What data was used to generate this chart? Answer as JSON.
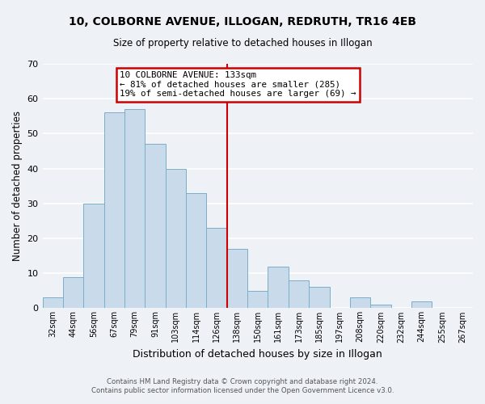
{
  "title_line1": "10, COLBORNE AVENUE, ILLOGAN, REDRUTH, TR16 4EB",
  "title_line2": "Size of property relative to detached houses in Illogan",
  "xlabel": "Distribution of detached houses by size in Illogan",
  "ylabel": "Number of detached properties",
  "categories": [
    "32sqm",
    "44sqm",
    "56sqm",
    "67sqm",
    "79sqm",
    "91sqm",
    "103sqm",
    "114sqm",
    "126sqm",
    "138sqm",
    "150sqm",
    "161sqm",
    "173sqm",
    "185sqm",
    "197sqm",
    "208sqm",
    "220sqm",
    "232sqm",
    "244sqm",
    "255sqm",
    "267sqm"
  ],
  "values": [
    3,
    9,
    30,
    56,
    57,
    47,
    40,
    33,
    23,
    17,
    5,
    12,
    8,
    6,
    0,
    3,
    1,
    0,
    2,
    0,
    0
  ],
  "bar_color": "#c9daea",
  "bar_edge_color": "#7aaec8",
  "vline_color": "#cc0000",
  "vline_index": 8.5,
  "ylim": [
    0,
    70
  ],
  "yticks": [
    0,
    10,
    20,
    30,
    40,
    50,
    60,
    70
  ],
  "annotation_title": "10 COLBORNE AVENUE: 133sqm",
  "annotation_line2": "← 81% of detached houses are smaller (285)",
  "annotation_line3": "19% of semi-detached houses are larger (69) →",
  "annotation_box_color": "#cc0000",
  "footer_line1": "Contains HM Land Registry data © Crown copyright and database right 2024.",
  "footer_line2": "Contains public sector information licensed under the Open Government Licence v3.0.",
  "background_color": "#eef2f7",
  "grid_color": "#ffffff"
}
